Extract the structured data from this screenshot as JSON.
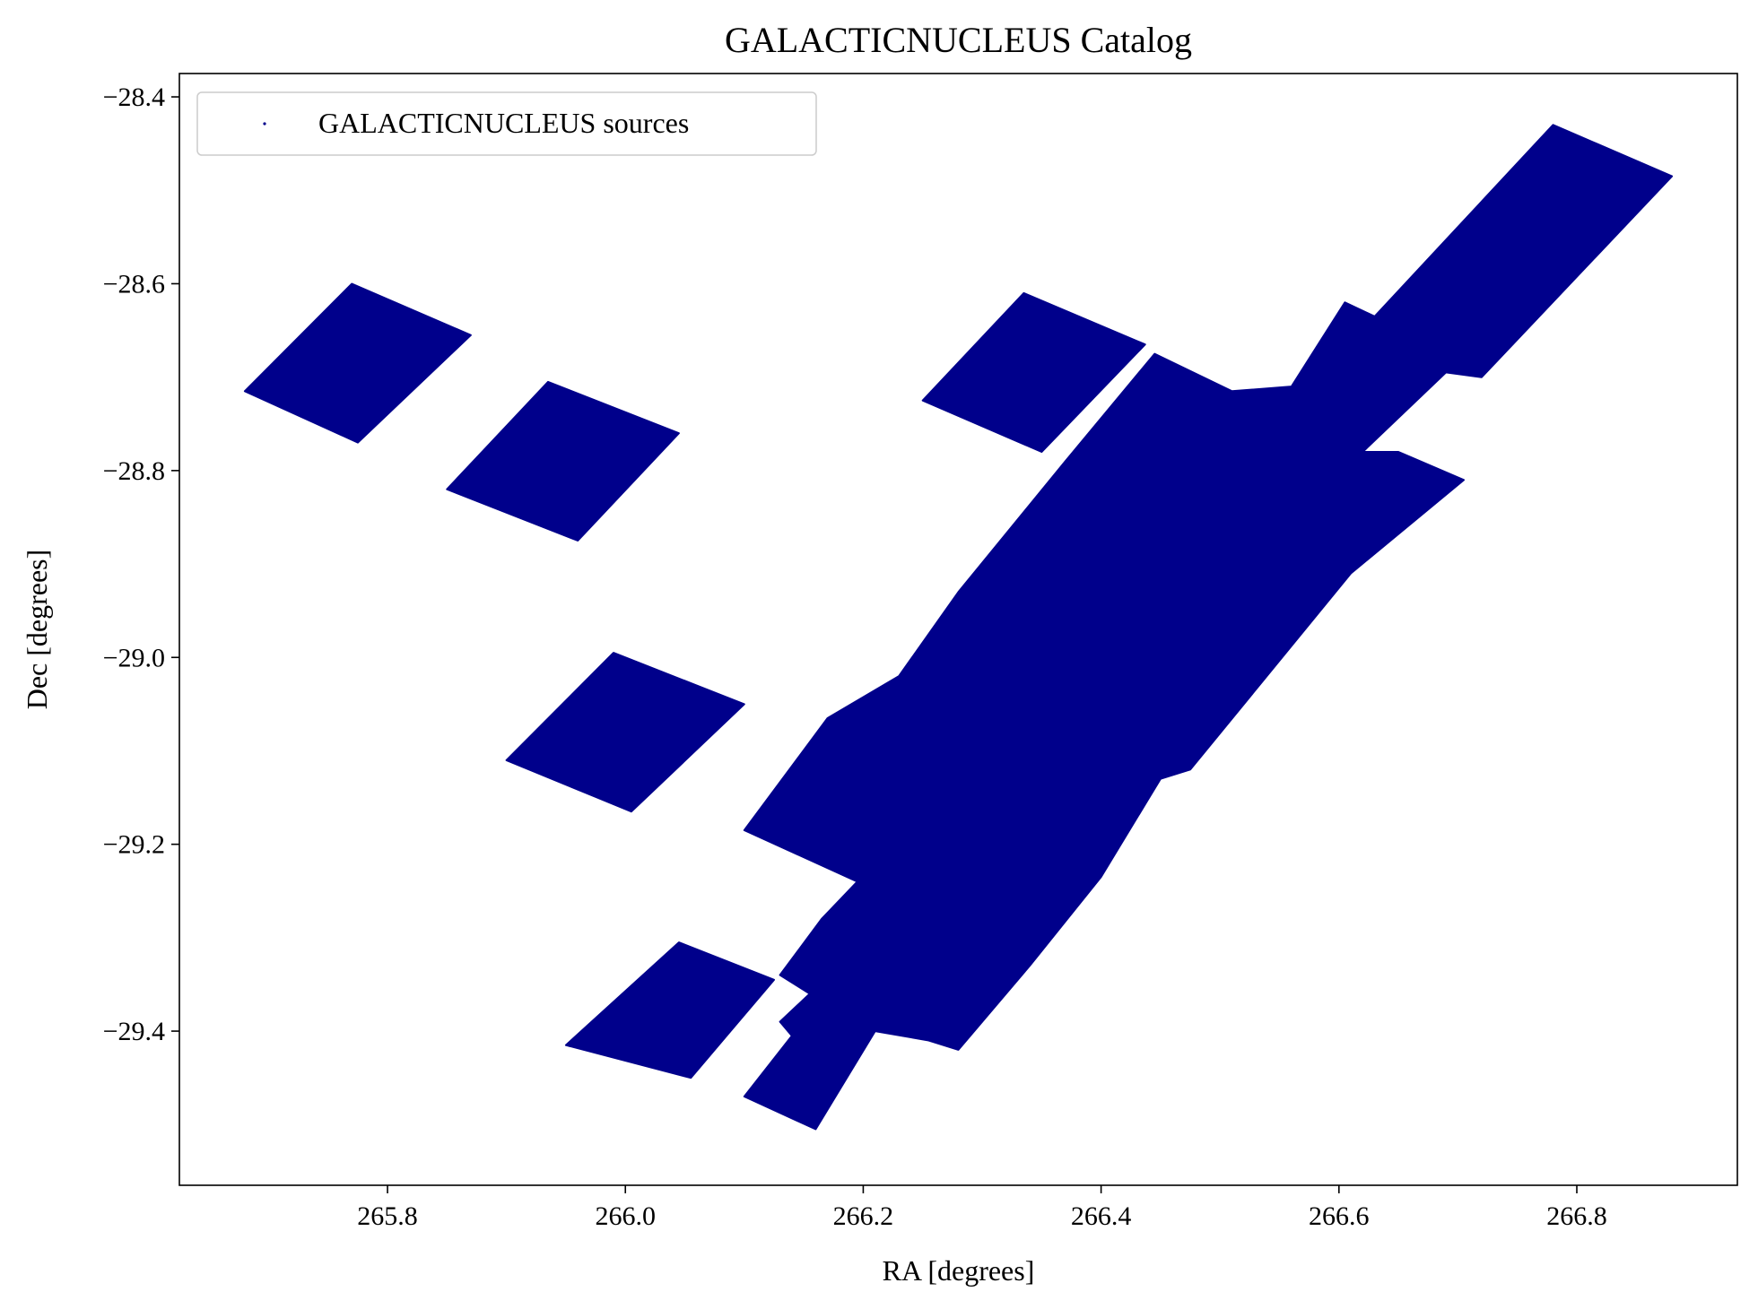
{
  "chart_data": {
    "type": "scatter",
    "title": "GALACTICNUCLEUS Catalog",
    "xlabel": "RA [degrees]",
    "ylabel": "Dec [degrees]",
    "xlim": [
      265.625,
      266.935
    ],
    "ylim": [
      -29.565,
      -28.375
    ],
    "xticks": [
      {
        "value": 265.8,
        "label": "265.8"
      },
      {
        "value": 266.0,
        "label": "266.0"
      },
      {
        "value": 266.2,
        "label": "266.2"
      },
      {
        "value": 266.4,
        "label": "266.4"
      },
      {
        "value": 266.6,
        "label": "266.6"
      },
      {
        "value": 266.8,
        "label": "266.8"
      }
    ],
    "yticks": [
      {
        "value": -28.4,
        "label": "−28.4"
      },
      {
        "value": -28.6,
        "label": "−28.6"
      },
      {
        "value": -28.8,
        "label": "−28.8"
      },
      {
        "value": -29.0,
        "label": "−29.0"
      },
      {
        "value": -29.2,
        "label": "−29.2"
      },
      {
        "value": -29.4,
        "label": "−29.4"
      }
    ],
    "grid": false,
    "legend_position": "top-left",
    "series": [
      {
        "name": "GALACTICNUCLEUS sources",
        "color": "#00008b",
        "marker": "point",
        "regions": [
          {
            "polygon": [
              [
                265.77,
                -28.6
              ],
              [
                265.87,
                -28.655
              ],
              [
                265.775,
                -28.77
              ],
              [
                265.68,
                -28.715
              ]
            ]
          },
          {
            "polygon": [
              [
                265.935,
                -28.705
              ],
              [
                266.045,
                -28.76
              ],
              [
                265.96,
                -28.875
              ],
              [
                265.85,
                -28.82
              ]
            ]
          },
          {
            "polygon": [
              [
                266.335,
                -28.61
              ],
              [
                266.437,
                -28.665
              ],
              [
                266.35,
                -28.78
              ],
              [
                266.25,
                -28.725
              ]
            ]
          },
          {
            "polygon": [
              [
                265.99,
                -28.995
              ],
              [
                266.1,
                -29.05
              ],
              [
                266.005,
                -29.165
              ],
              [
                265.9,
                -29.11
              ]
            ]
          },
          {
            "polygon": [
              [
                266.045,
                -29.305
              ],
              [
                266.125,
                -29.345
              ],
              [
                266.055,
                -29.45
              ],
              [
                265.95,
                -29.415
              ]
            ]
          },
          {
            "polygon": [
              [
                266.445,
                -28.675
              ],
              [
                266.51,
                -28.715
              ],
              [
                266.56,
                -28.71
              ],
              [
                266.605,
                -28.62
              ],
              [
                266.63,
                -28.635
              ],
              [
                266.78,
                -28.43
              ],
              [
                266.88,
                -28.485
              ],
              [
                266.72,
                -28.7
              ],
              [
                266.69,
                -28.695
              ],
              [
                266.62,
                -28.78
              ],
              [
                266.65,
                -28.78
              ],
              [
                266.705,
                -28.81
              ],
              [
                266.61,
                -28.91
              ],
              [
                266.475,
                -29.12
              ],
              [
                266.45,
                -29.13
              ],
              [
                266.4,
                -29.235
              ],
              [
                266.34,
                -29.33
              ],
              [
                266.28,
                -29.42
              ],
              [
                266.255,
                -29.41
              ],
              [
                266.21,
                -29.4
              ],
              [
                266.16,
                -29.505
              ],
              [
                266.1,
                -29.47
              ],
              [
                266.14,
                -29.405
              ],
              [
                266.13,
                -29.39
              ],
              [
                266.155,
                -29.36
              ],
              [
                266.13,
                -29.34
              ],
              [
                266.165,
                -29.28
              ],
              [
                266.195,
                -29.24
              ],
              [
                266.1,
                -29.185
              ],
              [
                266.17,
                -29.065
              ],
              [
                266.23,
                -29.02
              ],
              [
                266.28,
                -28.93
              ],
              [
                266.37,
                -28.79
              ]
            ]
          }
        ]
      }
    ]
  }
}
